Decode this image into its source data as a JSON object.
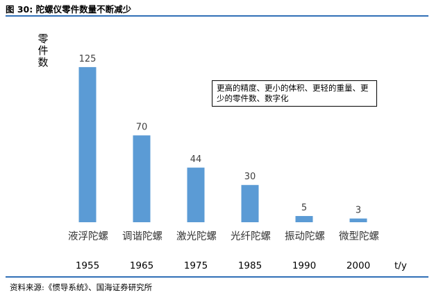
{
  "figure_title": "图 30:  陀螺仪零件数量不断减少",
  "source": "资料来源:《惯导系统》、国海证券研究所",
  "colors": {
    "bar": "#5b9bd5",
    "rule": "#2f6fb6"
  },
  "chart_data": {
    "type": "bar",
    "categories": [
      "液浮陀螺",
      "调谐陀螺",
      "激光陀螺",
      "光纤陀螺",
      "振动陀螺",
      "微型陀螺"
    ],
    "years": [
      "1955",
      "1965",
      "1975",
      "1985",
      "1990",
      "2000"
    ],
    "values": [
      125,
      70,
      44,
      30,
      5,
      3
    ],
    "value_labels": [
      "125",
      "70",
      "44",
      "30",
      "5",
      "3"
    ],
    "ylabel": "零件数",
    "xlabel": "t/y",
    "ylim": [
      0,
      135
    ],
    "annotation": "更高的精度、更小的体积、更轻的重量、更少的零件数、数字化",
    "grid": false,
    "legend": "none"
  }
}
